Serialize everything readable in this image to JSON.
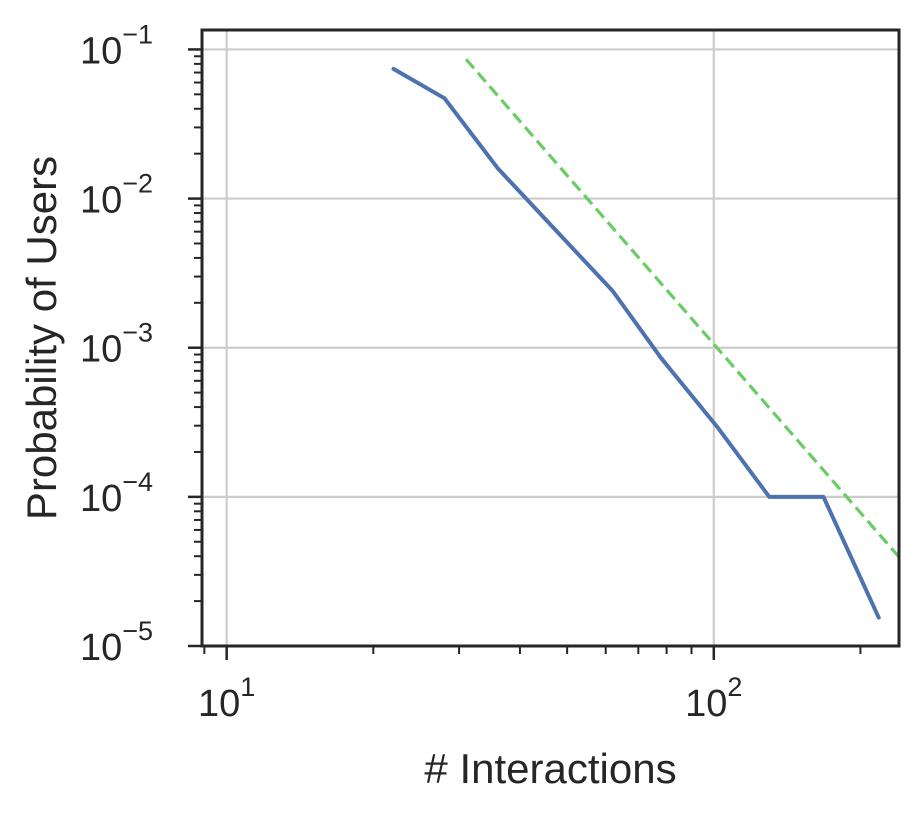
{
  "chart_data": {
    "type": "line",
    "title": "",
    "xlabel": "# Interactions",
    "ylabel": "Probability of Users",
    "xscale": "log",
    "yscale": "log",
    "xlim": [
      8.9,
      240
    ],
    "ylim": [
      1e-05,
      0.135
    ],
    "grid": true,
    "x_ticks": [
      {
        "base": "10",
        "exp": "1",
        "value": 10
      },
      {
        "base": "10",
        "exp": "2",
        "value": 100
      }
    ],
    "y_ticks": [
      {
        "base": "10",
        "exp": "−5",
        "value": 1e-05
      },
      {
        "base": "10",
        "exp": "−4",
        "value": 0.0001
      },
      {
        "base": "10",
        "exp": "−3",
        "value": 0.001
      },
      {
        "base": "10",
        "exp": "−2",
        "value": 0.01
      },
      {
        "base": "10",
        "exp": "−1",
        "value": 0.1
      }
    ],
    "series": [
      {
        "style": "solid",
        "color": "#4c72b0",
        "x": [
          22,
          28,
          36,
          47,
          62,
          78,
          102,
          130,
          168,
          218
        ],
        "y": [
          0.074,
          0.047,
          0.016,
          0.0063,
          0.0024,
          0.00085,
          0.00029,
          0.0001,
          0.0001,
          1.55e-05
        ]
      },
      {
        "style": "dashed",
        "color": "#6acc64",
        "x": [
          31,
          240
        ],
        "y": [
          0.086,
          3.95e-05
        ]
      }
    ]
  }
}
